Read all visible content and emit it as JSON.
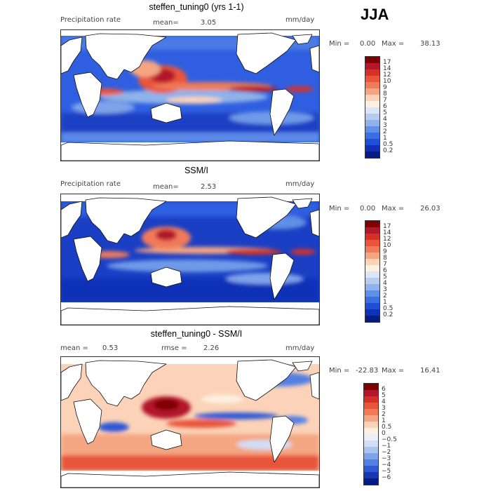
{
  "season": "JJA",
  "panels": [
    {
      "title": "steffen_tuning0 (yrs 1-1)",
      "left_label": "Precipitation rate",
      "mean_label": "mean=",
      "mean_value": "3.05",
      "units": "mm/day",
      "min_label": "Min =",
      "min_value": "0.00",
      "max_label": "Max =",
      "max_value": "38.13",
      "colorbar_labels": [
        "17",
        "14",
        "12",
        "10",
        "9",
        "8",
        "7",
        "6",
        "5",
        "4",
        "3",
        "2",
        "1",
        "0.5",
        "0.2"
      ]
    },
    {
      "title": "SSM/I",
      "left_label": "Precipitation rate",
      "mean_label": "mean=",
      "mean_value": "2.53",
      "units": "mm/day",
      "min_label": "Min =",
      "min_value": "0.00",
      "max_label": "Max =",
      "max_value": "26.03",
      "colorbar_labels": [
        "17",
        "14",
        "12",
        "10",
        "9",
        "8",
        "7",
        "6",
        "5",
        "4",
        "3",
        "2",
        "1",
        "0.5",
        "0.2"
      ]
    },
    {
      "title": "steffen_tuning0 - SSM/I",
      "mean_label": "mean =",
      "mean_value": "0.53",
      "rmse_label": "rmse =",
      "rmse_value": "2.26",
      "units": "mm/day",
      "min_label": "Min =",
      "min_value": "-22.83",
      "max_label": "Max =",
      "max_value": "16.41",
      "colorbar_labels": [
        "6",
        "5",
        "4",
        "3",
        "2",
        "1",
        "0.5",
        "0",
        "−0.5",
        "−1",
        "−2",
        "−3",
        "−4",
        "−5",
        "−6"
      ]
    }
  ],
  "colors": {
    "precip_scale": [
      "#7f0000",
      "#b2182b",
      "#d73027",
      "#e8553b",
      "#f07a5a",
      "#f4a582",
      "#fcd3b8",
      "#fdf0e0",
      "#d9e6f5",
      "#b7cdef",
      "#8fb2ea",
      "#5f8fe6",
      "#3a6ee3",
      "#1f4fd6",
      "#1030b8",
      "#061c85"
    ],
    "diff_scale": [
      "#7f0000",
      "#b2182b",
      "#d73027",
      "#e8553b",
      "#f07a5a",
      "#f4a582",
      "#fcd3b8",
      "#fdf0e0",
      "#e9f0fa",
      "#d1def5",
      "#aac3ef",
      "#7fa3ea",
      "#557fe3",
      "#2f58d4",
      "#1737b4",
      "#061c85"
    ]
  }
}
